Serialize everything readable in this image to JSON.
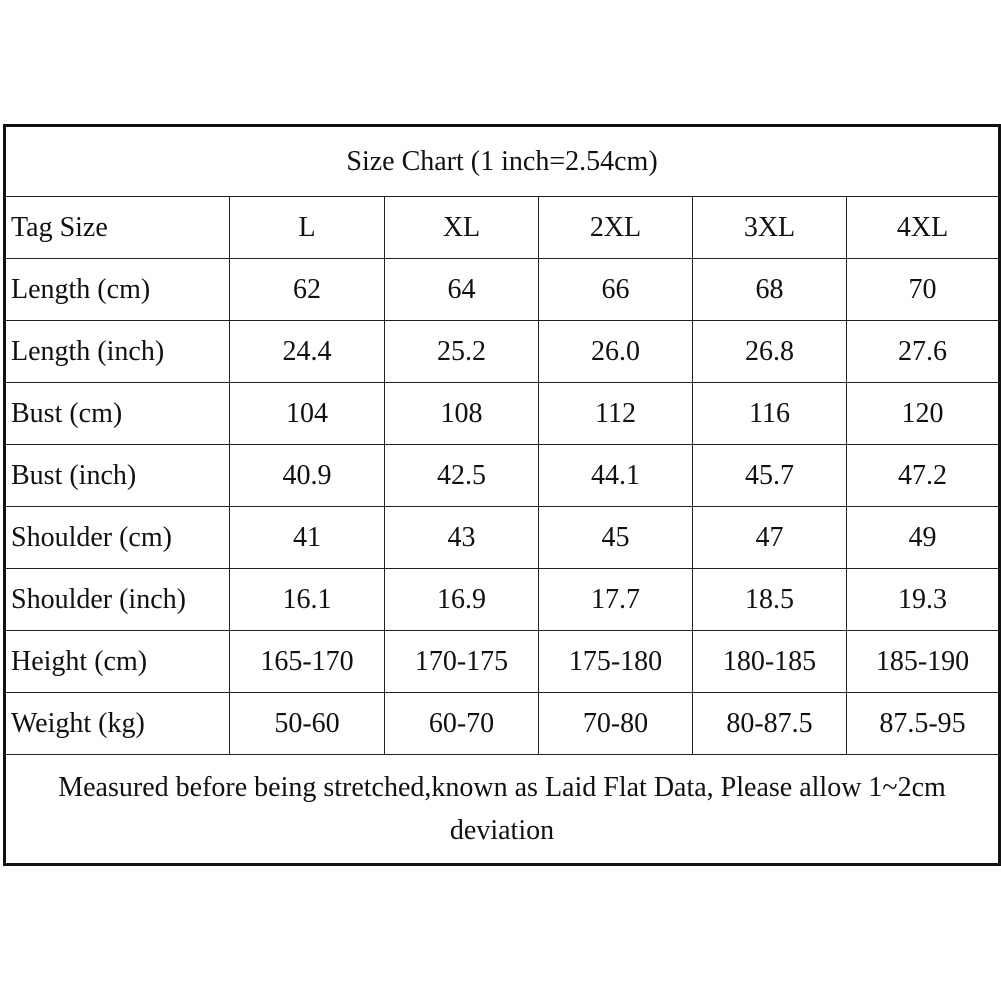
{
  "title": "Size Chart (1 inch=2.54cm)",
  "table": {
    "header": [
      "Tag Size",
      "L",
      "XL",
      "2XL",
      "3XL",
      "4XL"
    ],
    "rows": [
      [
        "Length (cm)",
        "62",
        "64",
        "66",
        "68",
        "70"
      ],
      [
        "Length (inch)",
        "24.4",
        "25.2",
        "26.0",
        "26.8",
        "27.6"
      ],
      [
        "Bust (cm)",
        "104",
        "108",
        "112",
        "116",
        "120"
      ],
      [
        "Bust (inch)",
        "40.9",
        "42.5",
        "44.1",
        "45.7",
        "47.2"
      ],
      [
        "Shoulder (cm)",
        "41",
        "43",
        "45",
        "47",
        "49"
      ],
      [
        "Shoulder (inch)",
        "16.1",
        "16.9",
        "17.7",
        "18.5",
        "19.3"
      ],
      [
        "Height (cm)",
        "165-170",
        "170-175",
        "175-180",
        "180-185",
        "185-190"
      ],
      [
        "Weight (kg)",
        "50-60",
        "60-70",
        "70-80",
        "80-87.5",
        "87.5-95"
      ]
    ]
  },
  "note": "Measured before being stretched,known as Laid Flat Data, Please allow 1~2cm deviation"
}
